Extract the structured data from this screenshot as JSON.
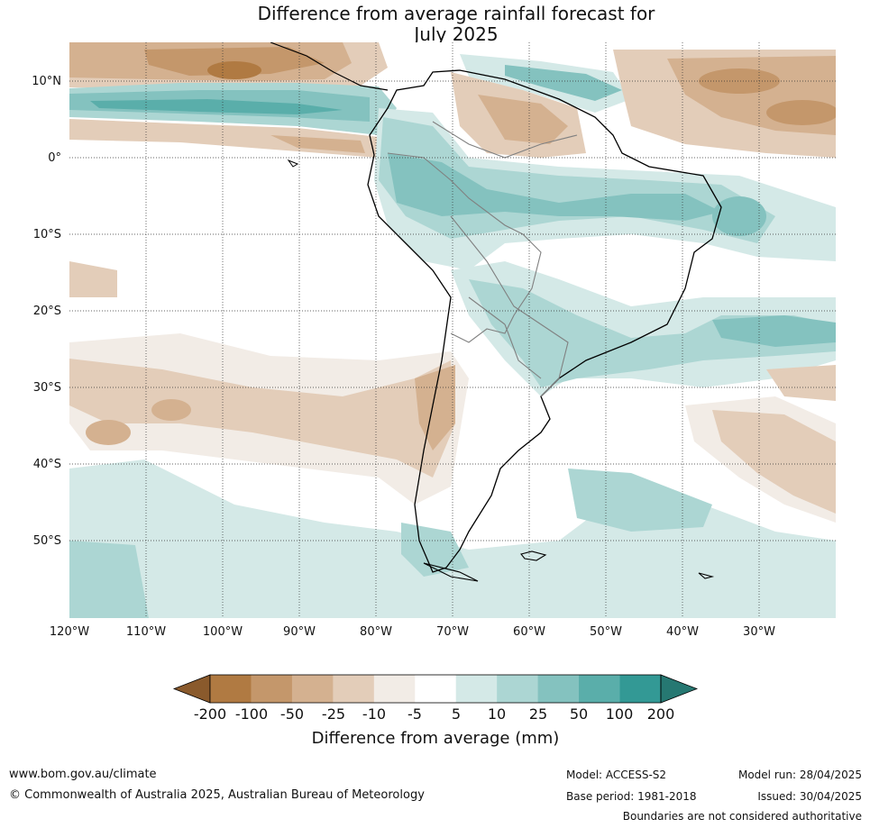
{
  "title": {
    "line1": "Difference from average rainfall forecast for",
    "line2": "July 2025"
  },
  "map": {
    "lat_labels": [
      "10°N",
      "0°",
      "10°S",
      "20°S",
      "30°S",
      "40°S",
      "50°S"
    ],
    "lon_labels": [
      "120°W",
      "110°W",
      "100°W",
      "90°W",
      "80°W",
      "70°W",
      "60°W",
      "50°W",
      "40°W",
      "30°W"
    ],
    "colors": {
      "land_outline": "#000000",
      "borders": "#808080",
      "grid": "#333333"
    }
  },
  "colorbar": {
    "title": "Difference from average (mm)",
    "ticks": [
      "-200",
      "-100",
      "-50",
      "-25",
      "-10",
      "-5",
      "5",
      "10",
      "25",
      "50",
      "100",
      "200"
    ],
    "colors": [
      "#8a5a2c",
      "#b07a42",
      "#c4976b",
      "#d4b190",
      "#e3cdb9",
      "#f2ece6",
      "#ffffff",
      "#d4e9e7",
      "#acd6d3",
      "#84c2bf",
      "#5aaeaa",
      "#339995",
      "#267872"
    ]
  },
  "footer": {
    "website": "www.bom.gov.au/climate",
    "copyright": "© Commonwealth of Australia 2025, Australian Bureau of Meteorology",
    "model": "Model: ACCESS-S2",
    "model_run": "Model run: 28/04/2025",
    "base_period": "Base period: 1981-2018",
    "issued": "Issued: 30/04/2025",
    "disclaimer": "Boundaries are not considered authoritative"
  }
}
